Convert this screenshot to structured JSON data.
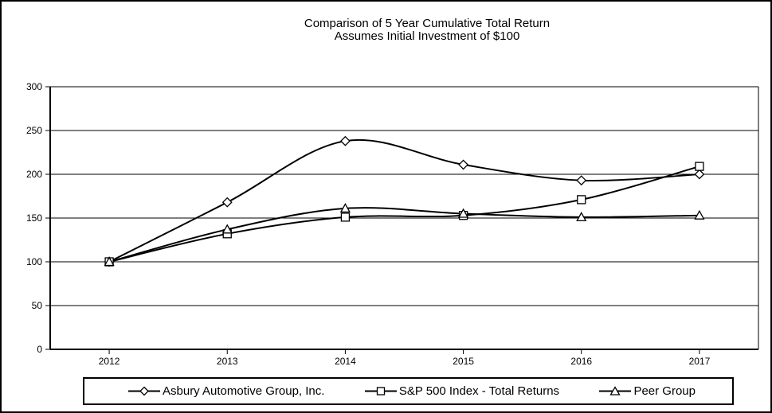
{
  "title": {
    "line1": "Comparison of 5 Year Cumulative Total Return",
    "line2": "Assumes Initial Investment of $100"
  },
  "chart_data": {
    "type": "line",
    "title": "Comparison of 5 Year Cumulative Total Return",
    "subtitle": "Assumes Initial Investment of $100",
    "categories": [
      "2012",
      "2013",
      "2014",
      "2015",
      "2016",
      "2017"
    ],
    "series": [
      {
        "name": "Asbury Automotive Group, Inc.",
        "marker": "diamond",
        "values": [
          100,
          168,
          238,
          211,
          193,
          200
        ]
      },
      {
        "name": "S&P 500 Index - Total Returns",
        "marker": "square",
        "values": [
          100,
          132,
          151,
          153,
          171,
          209
        ]
      },
      {
        "name": "Peer Group",
        "marker": "triangle",
        "values": [
          100,
          137,
          161,
          155,
          151,
          153
        ]
      }
    ],
    "xlabel": "",
    "ylabel": "",
    "ylim": [
      0,
      300
    ],
    "y_ticks": [
      0,
      50,
      100,
      150,
      200,
      250,
      300
    ],
    "grid": "horizontal",
    "smoothed_lines": true,
    "legend_position": "bottom",
    "line_color": "#000000",
    "marker_fill": "#ffffff",
    "background": "#ffffff"
  }
}
